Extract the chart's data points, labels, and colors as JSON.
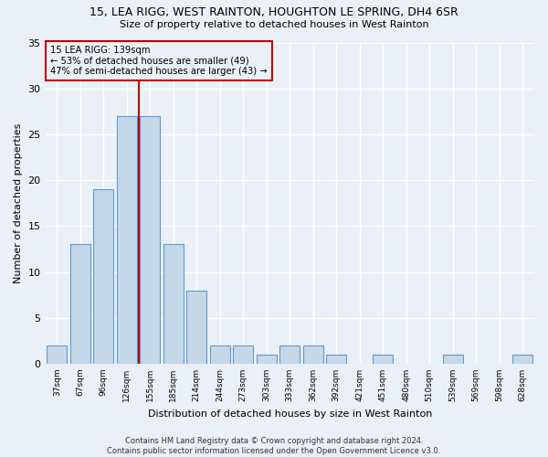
{
  "title1": "15, LEA RIGG, WEST RAINTON, HOUGHTON LE SPRING, DH4 6SR",
  "title2": "Size of property relative to detached houses in West Rainton",
  "xlabel": "Distribution of detached houses by size in West Rainton",
  "ylabel": "Number of detached properties",
  "categories": [
    "37sqm",
    "67sqm",
    "96sqm",
    "126sqm",
    "155sqm",
    "185sqm",
    "214sqm",
    "244sqm",
    "273sqm",
    "303sqm",
    "333sqm",
    "362sqm",
    "392sqm",
    "421sqm",
    "451sqm",
    "480sqm",
    "510sqm",
    "539sqm",
    "569sqm",
    "598sqm",
    "628sqm"
  ],
  "values": [
    2,
    13,
    19,
    27,
    27,
    13,
    8,
    2,
    2,
    1,
    2,
    2,
    1,
    0,
    1,
    0,
    0,
    1,
    0,
    0,
    1
  ],
  "bar_color": "#c5d8e8",
  "bar_edge_color": "#5b9bd5",
  "vline_x": 3.5,
  "vline_color": "#c00000",
  "annotation_line1": "15 LEA RIGG: 139sqm",
  "annotation_line2": "← 53% of detached houses are smaller (49)",
  "annotation_line3": "47% of semi-detached houses are larger (43) →",
  "annotation_box_color": "#c00000",
  "ylim": [
    0,
    35
  ],
  "yticks": [
    0,
    5,
    10,
    15,
    20,
    25,
    30,
    35
  ],
  "bg_color": "#eaf0f6",
  "grid_color": "#ffffff",
  "footer": "Contains HM Land Registry data © Crown copyright and database right 2024.\nContains public sector information licensed under the Open Government Licence v3.0."
}
